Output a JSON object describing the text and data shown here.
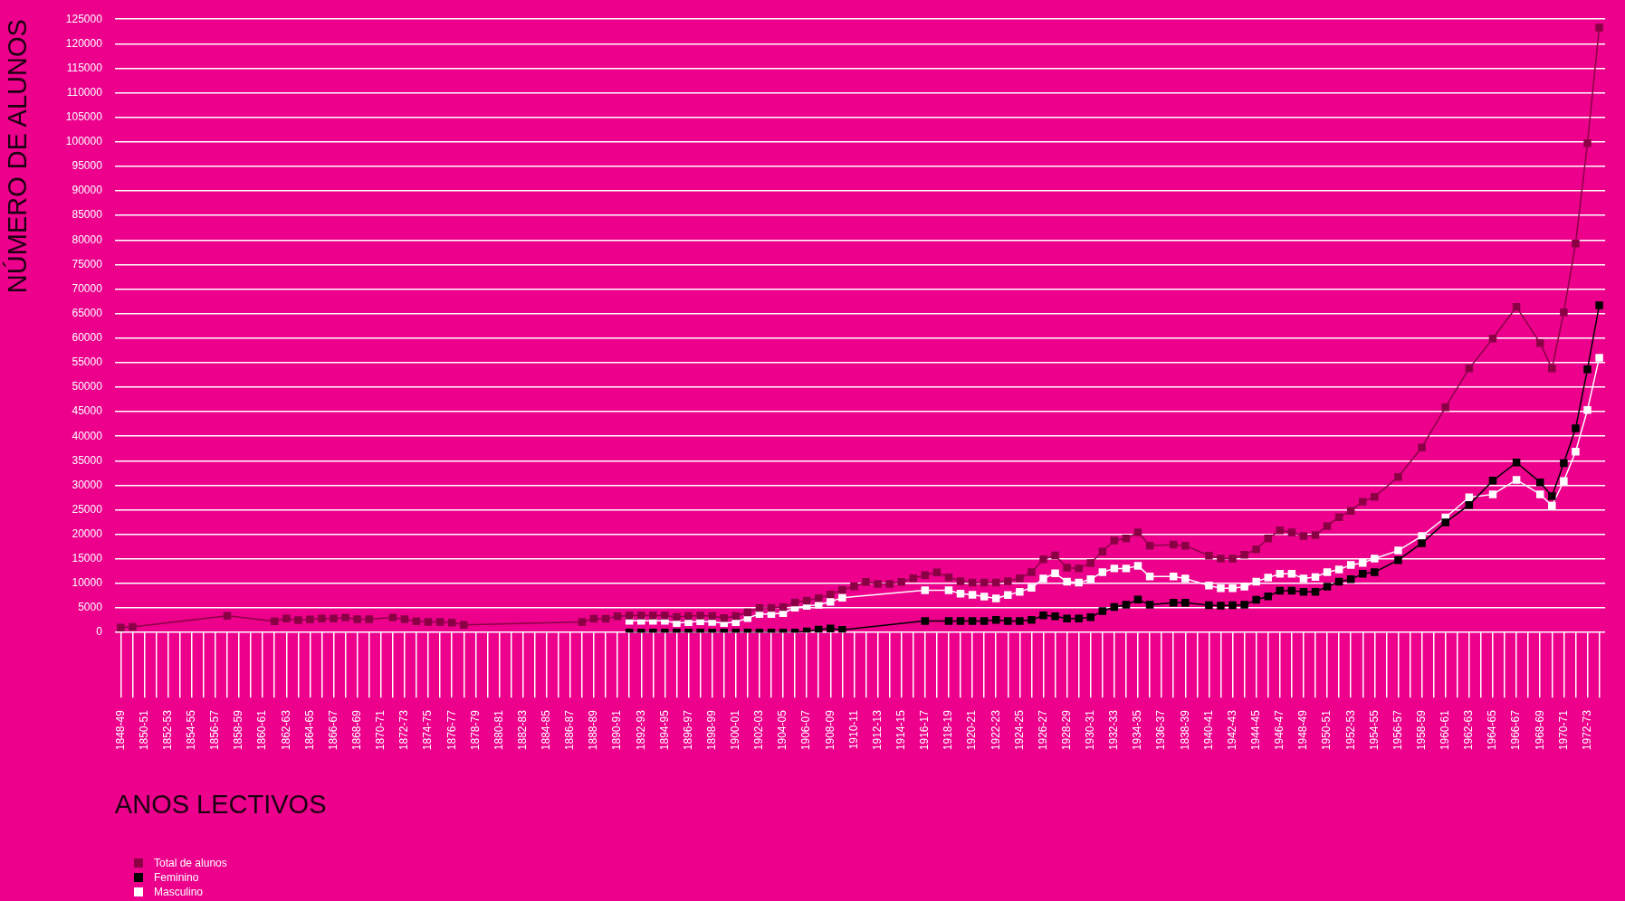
{
  "chart_data": {
    "type": "line",
    "xlabel": "ANOS LECTIVOS",
    "ylabel": "NÚMERO DE ALUNOS",
    "categories": [
      "1848-49",
      null,
      "1850-51",
      null,
      "1852-53",
      null,
      "1854-55",
      null,
      "1856-57",
      null,
      "1858-59",
      null,
      "1860-61",
      null,
      "1862-63",
      null,
      "1864-65",
      null,
      "1866-67",
      null,
      "1868-69",
      null,
      "1870-71",
      null,
      "1872-73",
      null,
      "1874-75",
      null,
      "1876-77",
      null,
      "1878-79",
      null,
      "1880-81",
      null,
      "1882-83",
      null,
      "1884-85",
      null,
      "1886-87",
      null,
      "1888-89",
      null,
      "1890-91",
      null,
      "1892-93",
      null,
      "1894-95",
      null,
      "1896-97",
      null,
      "1898-99",
      null,
      "1900-01",
      null,
      "1902-03",
      null,
      "1904-05",
      null,
      "1906-07",
      null,
      "1908-09",
      null,
      "1910-11",
      null,
      "1912-13",
      null,
      "1914-15",
      null,
      "1916-17",
      null,
      "1918-19",
      null,
      "1920-21",
      null,
      "1922-23",
      null,
      "1924-25",
      null,
      "1926-27",
      null,
      "1928-29",
      null,
      "1930-31",
      null,
      "1932-33",
      null,
      "1934-35",
      null,
      "1936-37",
      null,
      "1838-39",
      null,
      "1940-41",
      null,
      "1942-43",
      null,
      "1944-45",
      null,
      "1946-47",
      null,
      "1948-49",
      null,
      "1950-51",
      null,
      "1952-53",
      null,
      "1954-55",
      null,
      "1956-57",
      null,
      "1958-59",
      null,
      "1960-61",
      null,
      "1962-63",
      null,
      "1964-65",
      null,
      "1966-67",
      null,
      "1968-69",
      null,
      "1970-71",
      null,
      "1972-73",
      null
    ],
    "series": [
      {
        "name": "Total de alunos",
        "color": "#8b0045",
        "values": [
          1000,
          1150,
          null,
          null,
          null,
          null,
          null,
          null,
          null,
          3400,
          null,
          null,
          null,
          2300,
          2850,
          2500,
          2650,
          2850,
          2850,
          3050,
          2700,
          2700,
          null,
          3050,
          2700,
          2300,
          2150,
          2150,
          2000,
          1550,
          null,
          null,
          null,
          null,
          null,
          null,
          null,
          null,
          null,
          2150,
          2800,
          2800,
          3300,
          3450,
          3450,
          3450,
          3450,
          3150,
          3350,
          3450,
          3350,
          2950,
          3350,
          4100,
          5000,
          5000,
          5200,
          6100,
          6500,
          7000,
          7750,
          8700,
          9400,
          10300,
          9900,
          9900,
          10300,
          11050,
          11700,
          12250,
          11250,
          10450,
          10150,
          10150,
          10150,
          10450,
          11050,
          12300,
          14900,
          15700,
          13200,
          13050,
          14150,
          16500,
          18750,
          19150,
          20400,
          17700,
          null,
          17900,
          17700,
          null,
          15650,
          15050,
          15050,
          15850,
          16950,
          19150,
          20800,
          20400,
          19650,
          19850,
          21700,
          23500,
          24800,
          26650,
          27650,
          null,
          31700,
          null,
          37700,
          null,
          45900,
          null,
          53800,
          null,
          59900,
          null,
          66350,
          null,
          59000,
          53800,
          65250,
          79250,
          99750,
          123300
        ]
      },
      {
        "name": "Feminino",
        "color": "#000000",
        "values": [
          null,
          null,
          null,
          null,
          null,
          null,
          null,
          null,
          null,
          null,
          null,
          null,
          null,
          null,
          null,
          null,
          null,
          null,
          null,
          null,
          null,
          null,
          null,
          null,
          null,
          null,
          null,
          null,
          null,
          null,
          null,
          null,
          null,
          null,
          null,
          null,
          null,
          null,
          null,
          null,
          null,
          null,
          null,
          0,
          0,
          0,
          0,
          0,
          0,
          0,
          0,
          0,
          0,
          0,
          0,
          0,
          0,
          0,
          200,
          600,
          800,
          550,
          null,
          null,
          null,
          null,
          null,
          null,
          2350,
          null,
          2350,
          2350,
          2350,
          2350,
          2550,
          2350,
          2350,
          2550,
          3500,
          3300,
          2850,
          2850,
          3100,
          4350,
          5200,
          5650,
          6700,
          5650,
          null,
          6050,
          6050,
          null,
          5550,
          5450,
          5550,
          5650,
          6650,
          7350,
          8500,
          8500,
          8300,
          8300,
          9350,
          10350,
          10850,
          11950,
          12300,
          null,
          14750,
          null,
          18200,
          null,
          22450,
          null,
          26000,
          null,
          30950,
          null,
          34650,
          null,
          30600,
          27800,
          34500,
          41600,
          53650,
          66700
        ]
      },
      {
        "name": "Masculino",
        "color": "#ffffff",
        "values": [
          null,
          null,
          null,
          null,
          null,
          null,
          null,
          null,
          null,
          null,
          null,
          null,
          null,
          null,
          null,
          null,
          null,
          null,
          null,
          null,
          null,
          null,
          null,
          null,
          null,
          null,
          null,
          null,
          null,
          null,
          null,
          null,
          null,
          null,
          null,
          null,
          null,
          null,
          null,
          null,
          null,
          null,
          null,
          2400,
          2400,
          2400,
          2400,
          1900,
          2100,
          2300,
          2150,
          1900,
          2100,
          2950,
          3750,
          3750,
          3950,
          5050,
          5400,
          5650,
          6250,
          7100,
          null,
          null,
          null,
          null,
          null,
          null,
          8600,
          null,
          8600,
          7900,
          7700,
          7300,
          6950,
          7650,
          8300,
          9100,
          11000,
          12050,
          10350,
          10150,
          10850,
          12300,
          13050,
          13050,
          13600,
          11400,
          null,
          11400,
          11000,
          null,
          9550,
          9000,
          9000,
          9350,
          10350,
          11200,
          11950,
          11950,
          11000,
          11300,
          12300,
          12850,
          13750,
          14200,
          15050,
          null,
          16700,
          null,
          19650,
          null,
          23450,
          null,
          27550,
          null,
          28150,
          null,
          31100,
          null,
          28150,
          25850,
          30850,
          36850,
          45350,
          56000
        ]
      }
    ],
    "ylim": [
      0,
      125000
    ],
    "yticks": [
      0,
      5000,
      10000,
      15000,
      20000,
      25000,
      30000,
      35000,
      40000,
      45000,
      50000,
      55000,
      60000,
      65000,
      70000,
      75000,
      80000,
      85000,
      90000,
      95000,
      100000,
      105000,
      110000,
      115000,
      120000,
      125000
    ],
    "grid": "y",
    "legend": "bottom left",
    "marker": "square"
  }
}
